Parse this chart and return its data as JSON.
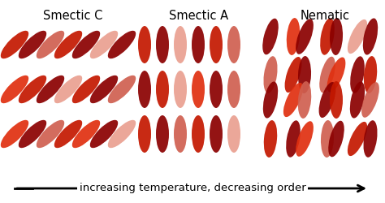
{
  "title_smectic_c": "Smectic C",
  "title_smectic_a": "Smectic A",
  "title_nematic": "Nematic",
  "arrow_text": "increasing temperature, decreasing order",
  "background_color": "#ffffff",
  "title_fontsize": 10.5,
  "arrow_fontsize": 9.5,
  "colors": {
    "dark_red": "#8B0000",
    "medium_red": "#C41800",
    "bright_red": "#E03010",
    "light_pink": "#EAA090",
    "pink": "#D06050"
  },
  "fig_w": 4.74,
  "fig_h": 2.5,
  "dpi": 100
}
